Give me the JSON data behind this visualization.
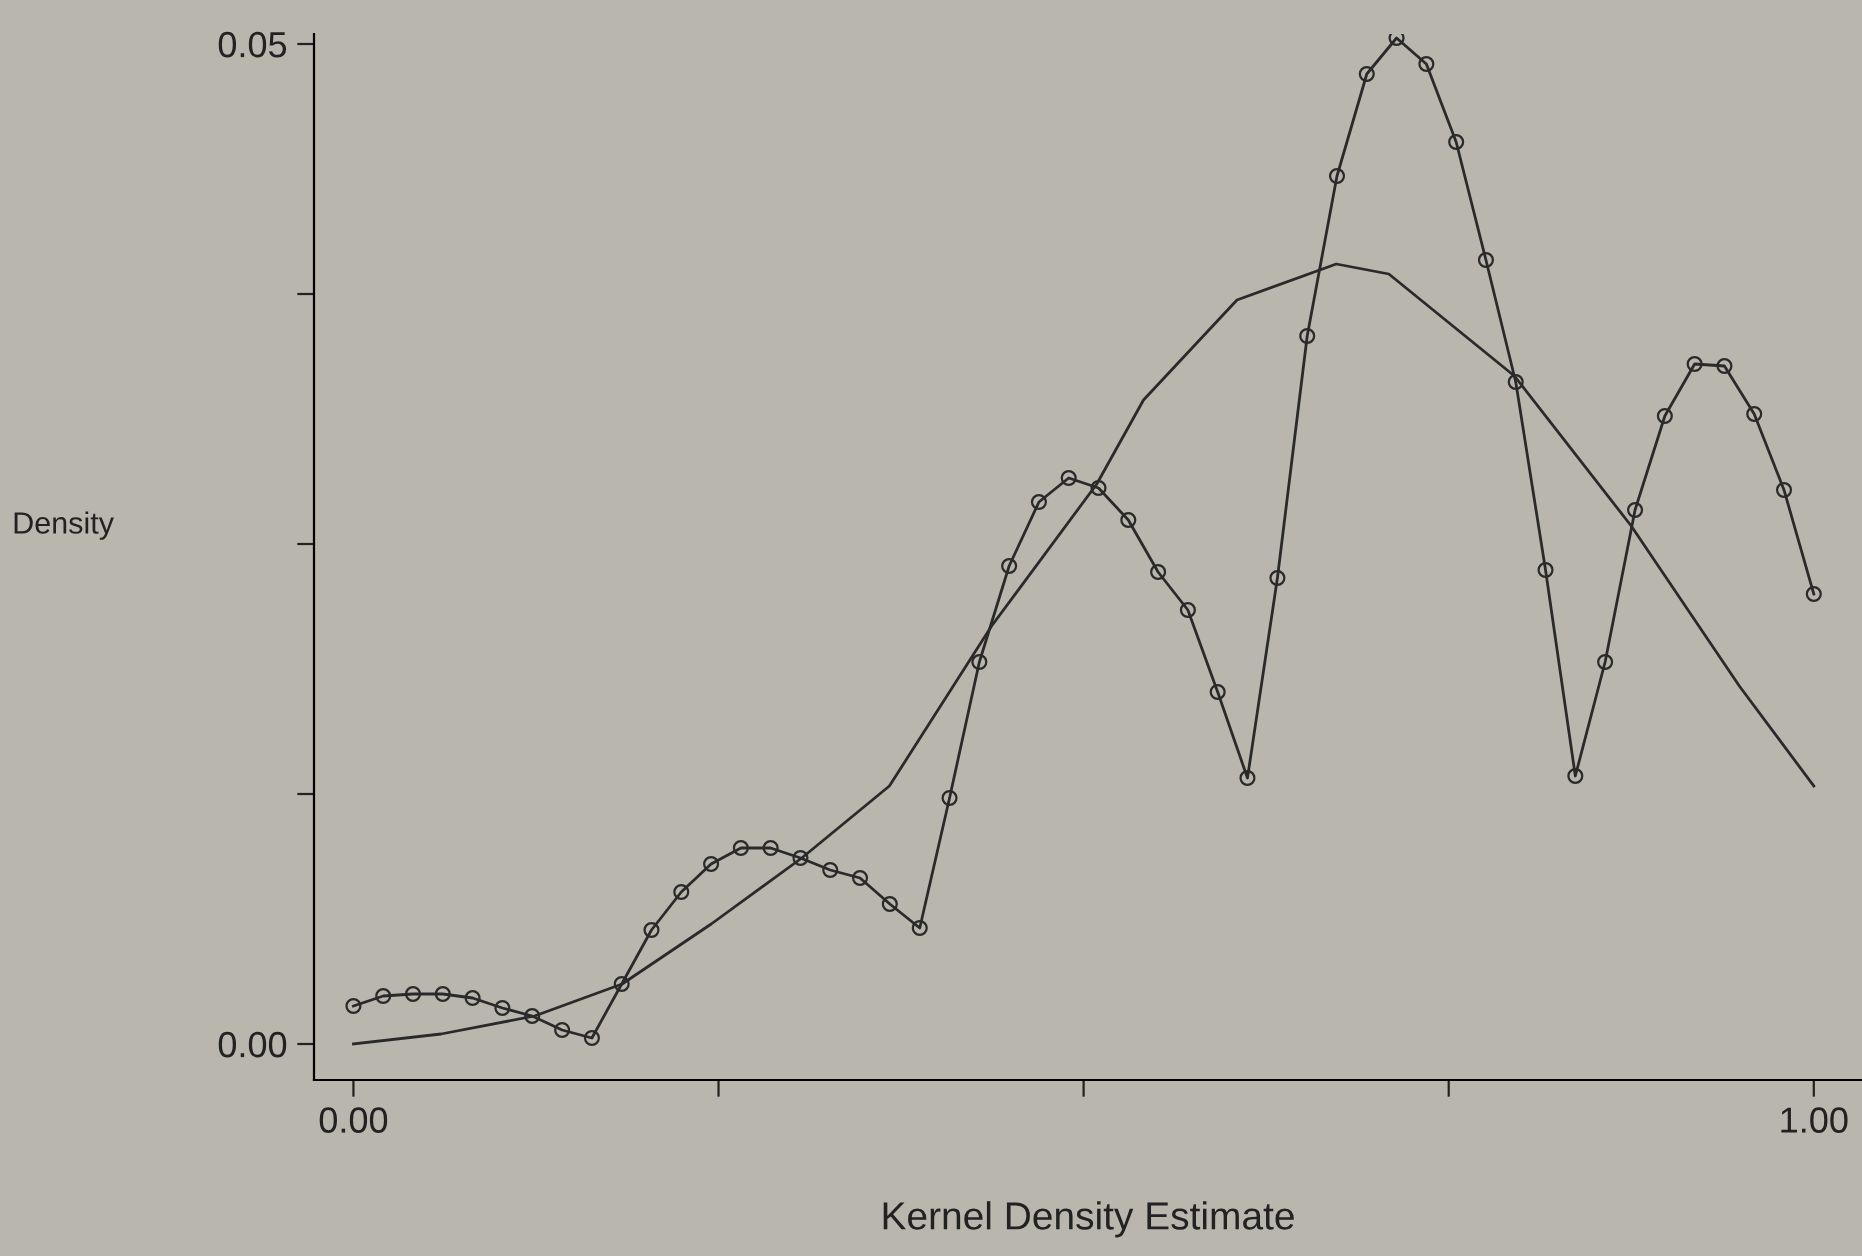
{
  "chart_data": {
    "type": "line",
    "xlabel": "Kernel Density Estimate",
    "ylabel": "Density",
    "xlim": [
      -0.027,
      1.033
    ],
    "ylim": [
      -0.0018,
      0.0505
    ],
    "xticks": [
      {
        "value": 0,
        "label": "0.00"
      },
      {
        "value": 0.25,
        "label": null
      },
      {
        "value": 0.5,
        "label": null
      },
      {
        "value": 0.75,
        "label": null
      },
      {
        "value": 1,
        "label": "1.00"
      }
    ],
    "yticks": [
      {
        "value": 0,
        "label": "0.00"
      },
      {
        "value": 0.0125,
        "label": null
      },
      {
        "value": 0.025,
        "label": null
      },
      {
        "value": 0.0375,
        "label": null
      },
      {
        "value": 0.05,
        "label": "0.05"
      }
    ],
    "grid": false,
    "series": [
      {
        "color": "#2a2a2a",
        "marker": "circle",
        "line_style": "solid",
        "x": [
          0,
          0.0204,
          0.0408,
          0.0612,
          0.0816,
          0.102,
          0.1224,
          0.1429,
          0.1633,
          0.1837,
          0.2041,
          0.2245,
          0.2449,
          0.2653,
          0.2857,
          0.3061,
          0.3265,
          0.3469,
          0.3673,
          0.3878,
          0.4082,
          0.4286,
          0.449,
          0.4694,
          0.4898,
          0.5102,
          0.5306,
          0.551,
          0.5714,
          0.5918,
          0.6122,
          0.6327,
          0.6531,
          0.6735,
          0.6939,
          0.7143,
          0.7347,
          0.7551,
          0.7755,
          0.7959,
          0.8163,
          0.8367,
          0.8571,
          0.8776,
          0.898,
          0.9184,
          0.9388,
          0.9592,
          0.9796,
          1
        ],
        "values": [
          0.0019,
          0.0024,
          0.0025,
          0.0025,
          0.0023,
          0.0018,
          0.0014,
          0.0007,
          0.0003,
          0.003,
          0.0057,
          0.0076,
          0.009,
          0.0098,
          0.0098,
          0.0093,
          0.0087,
          0.0083,
          0.007,
          0.0058,
          0.0123,
          0.0191,
          0.0239,
          0.0271,
          0.0283,
          0.0278,
          0.0262,
          0.0236,
          0.0217,
          0.0176,
          0.0133,
          0.0233,
          0.0354,
          0.0434,
          0.0485,
          0.0503,
          0.049,
          0.0451,
          0.0392,
          0.0331,
          0.0237,
          0.0134,
          0.0191,
          0.0267,
          0.0314,
          0.034,
          0.0339,
          0.0315,
          0.0277,
          0.0225
        ]
      },
      {
        "color": "#2a2a2a",
        "marker": "none",
        "line_style": "solid",
        "x": [
          0,
          0.06,
          0.124,
          0.184,
          0.245,
          0.307,
          0.367,
          0.437,
          0.509,
          0.541,
          0.605,
          0.673,
          0.709,
          0.795,
          0.875,
          0.949,
          1
        ],
        "values": [
          0.0,
          0.0005,
          0.0014,
          0.003,
          0.006,
          0.0093,
          0.0129,
          0.0209,
          0.028,
          0.0322,
          0.0372,
          0.039,
          0.0385,
          0.0334,
          0.0259,
          0.0179,
          0.0129
        ]
      }
    ]
  }
}
